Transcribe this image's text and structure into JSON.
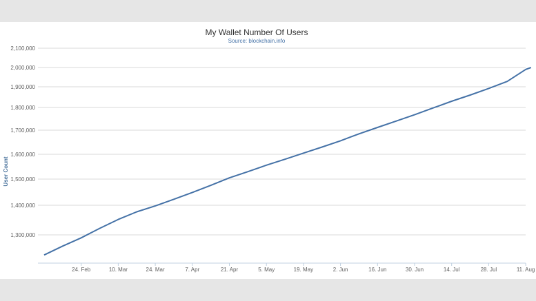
{
  "chart_data": {
    "type": "line",
    "title": "My Wallet Number Of Users",
    "subtitle": "Source: blockchain.info",
    "xlabel": "",
    "ylabel": "User Count",
    "x_tick_labels": [
      "24. Feb",
      "10. Mar",
      "24. Mar",
      "7. Apr",
      "21. Apr",
      "5. May",
      "19. May",
      "2. Jun",
      "16. Jun",
      "30. Jun",
      "14. Jul",
      "28. Jul",
      "11. Aug"
    ],
    "y_tick_labels": [
      "1,300,000",
      "1,400,000",
      "1,500,000",
      "1,600,000",
      "1,700,000",
      "1,800,000",
      "1,900,000",
      "2,000,000",
      "2,100,000"
    ],
    "y_ticks": [
      1300000,
      1400000,
      1500000,
      1600000,
      1700000,
      1800000,
      1900000,
      2000000,
      2100000
    ],
    "ylim": [
      1230000,
      2100000
    ],
    "grid": true,
    "legend": "none",
    "line_color": "#4572a7",
    "series": [
      {
        "x": [
          "2014-02-10",
          "2014-02-17",
          "2014-02-24",
          "2014-03-03",
          "2014-03-10",
          "2014-03-17",
          "2014-03-24",
          "2014-03-31",
          "2014-04-07",
          "2014-04-14",
          "2014-04-21",
          "2014-04-28",
          "2014-05-05",
          "2014-05-12",
          "2014-05-19",
          "2014-05-26",
          "2014-06-02",
          "2014-06-09",
          "2014-06-16",
          "2014-06-23",
          "2014-06-30",
          "2014-07-07",
          "2014-07-14",
          "2014-07-21",
          "2014-07-28",
          "2014-08-04",
          "2014-08-11",
          "2014-08-13"
        ],
        "y": [
          1232000,
          1262000,
          1290000,
          1322000,
          1352000,
          1378000,
          1398000,
          1423000,
          1449000,
          1476000,
          1505000,
          1530000,
          1556000,
          1580000,
          1605000,
          1630000,
          1656000,
          1685000,
          1712000,
          1740000,
          1768000,
          1798000,
          1830000,
          1860000,
          1892000,
          1928000,
          1990000,
          2000000
        ]
      }
    ]
  }
}
